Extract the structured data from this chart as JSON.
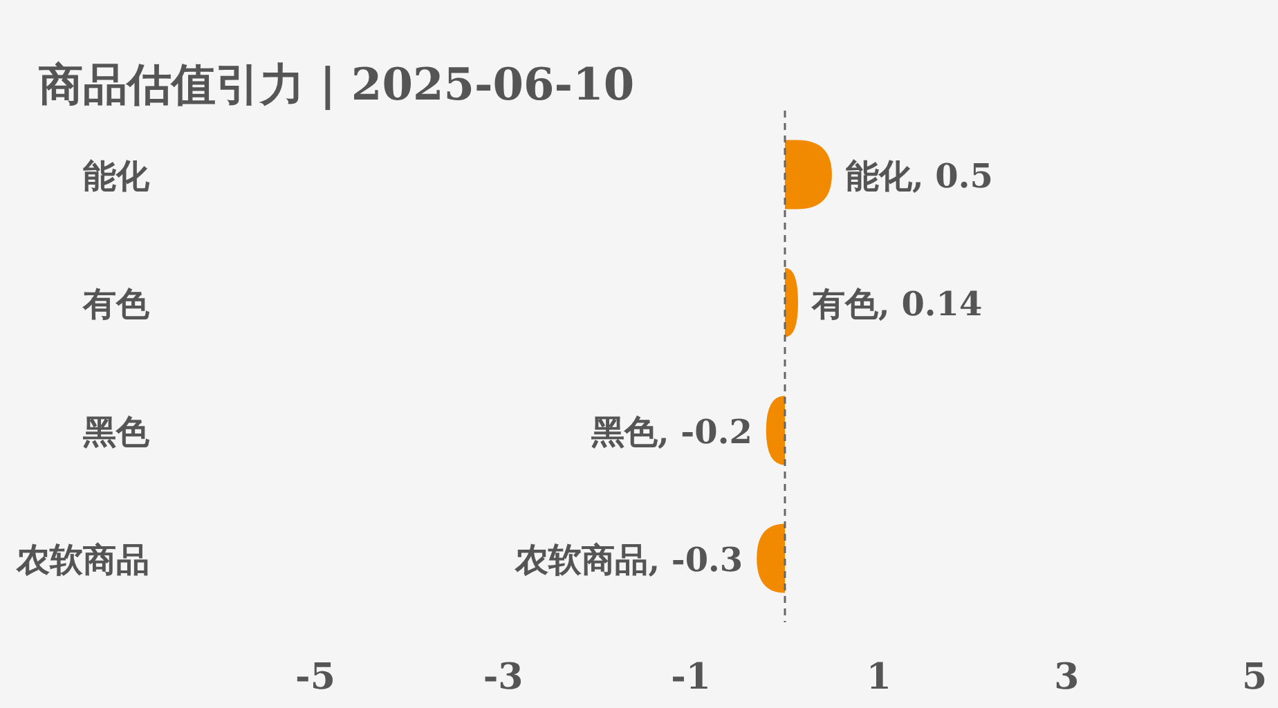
{
  "chart_data": {
    "type": "bar",
    "orientation": "horizontal",
    "title": "商品估值引力 | 2025-06-10",
    "categories": [
      "能化",
      "有色",
      "黑色",
      "农软商品"
    ],
    "values": [
      0.5,
      0.14,
      -0.2,
      -0.3
    ],
    "value_labels": [
      "能化, 0.5",
      "有色, 0.14",
      "黑色, -0.2",
      "农软商品, -0.3"
    ],
    "color": "#f28a00",
    "xlim": [
      -5,
      5
    ],
    "xticks": [
      -5,
      -3,
      -1,
      1,
      3,
      5
    ],
    "ref_lines": [
      {
        "axis": "x",
        "value": 0,
        "color": "#666666",
        "line_style": "dashed"
      }
    ]
  }
}
